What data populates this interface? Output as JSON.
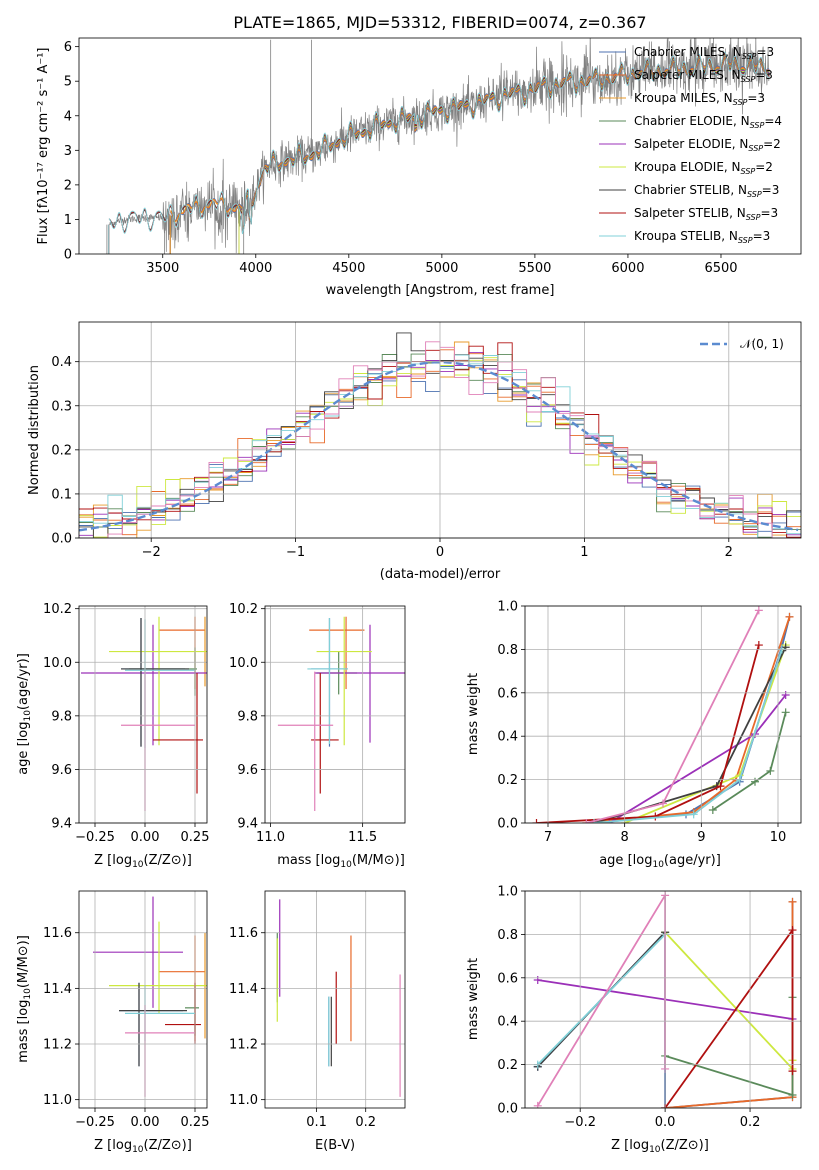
{
  "chart_data": [
    {
      "id": "spectrum",
      "type": "line",
      "title": "PLATE=1865, MJD=53312, FIBERID=0074, z=0.367",
      "xlabel": "wavelength [Angstrom, rest frame]",
      "ylabel": "Flux [f_λ 10^-17 erg cm^-2 s^-1 A^-1]",
      "xlim": [
        3050,
        6930
      ],
      "ylim": [
        0,
        6.25
      ],
      "xticks": [
        "3500",
        "4000",
        "4500",
        "5000",
        "5500",
        "6000",
        "6500"
      ],
      "yticks": [
        "0",
        "1",
        "2",
        "3",
        "4",
        "5",
        "6"
      ],
      "grid": false,
      "legend_position": "top-right",
      "continuum": {
        "x": [
          3210,
          3260,
          3300,
          3400,
          3500,
          3560,
          3620,
          3700,
          3780,
          3850,
          3920,
          3980,
          4050,
          4150,
          4250,
          4350,
          4450,
          4550,
          4650,
          4750,
          4850,
          4950,
          5050,
          5150,
          5250,
          5350,
          5450,
          5550,
          5650,
          5750,
          5850,
          5950,
          6050,
          6150,
          6250,
          6350,
          6450,
          6550,
          6650,
          6750
        ],
        "y": [
          0.85,
          0.95,
          1.0,
          1.05,
          1.05,
          1.15,
          1.25,
          1.4,
          1.45,
          1.4,
          1.3,
          1.6,
          2.5,
          2.7,
          2.8,
          3.0,
          3.3,
          3.5,
          3.7,
          3.85,
          3.95,
          4.1,
          4.2,
          4.3,
          4.45,
          4.6,
          4.7,
          4.85,
          4.95,
          5.0,
          5.05,
          5.15,
          5.25,
          5.3,
          5.35,
          5.4,
          5.45,
          5.5,
          5.45,
          5.4
        ]
      },
      "series": [
        {
          "name": "Chabrier MILES, N_SSP=3",
          "color": "#4c72b0"
        },
        {
          "name": "Salpeter MILES, N_SSP=3",
          "color": "#e86a2a"
        },
        {
          "name": "Kroupa MILES, N_SSP=3",
          "color": "#e89a2a"
        },
        {
          "name": "Chabrier ELODIE, N_SSP=4",
          "color": "#5a8a5a"
        },
        {
          "name": "Salpeter ELODIE, N_SSP=2",
          "color": "#9b30b8"
        },
        {
          "name": "Kroupa ELODIE, N_SSP=2",
          "color": "#cde840"
        },
        {
          "name": "Chabrier STELIB, N_SSP=3",
          "color": "#404040"
        },
        {
          "name": "Salpeter STELIB, N_SSP=3",
          "color": "#b01010"
        },
        {
          "name": "Kroupa STELIB, N_SSP=3",
          "color": "#80d0d8"
        }
      ],
      "legend_labels": [
        {
          "pre": "Chabrier MILES, N",
          "sub": "SSP",
          "post": "=3"
        },
        {
          "pre": "Salpeter MILES, N",
          "sub": "SSP",
          "post": "=3"
        },
        {
          "pre": "Kroupa MILES, N",
          "sub": "SSP",
          "post": "=3"
        },
        {
          "pre": "Chabrier ELODIE, N",
          "sub": "SSP",
          "post": "=4"
        },
        {
          "pre": "Salpeter ELODIE, N",
          "sub": "SSP",
          "post": "=2"
        },
        {
          "pre": "Kroupa ELODIE, N",
          "sub": "SSP",
          "post": "=2"
        },
        {
          "pre": "Chabrier STELIB, N",
          "sub": "SSP",
          "post": "=3"
        },
        {
          "pre": "Salpeter STELIB, N",
          "sub": "SSP",
          "post": "=3"
        },
        {
          "pre": "Kroupa STELIB, N",
          "sub": "SSP",
          "post": "=3"
        }
      ],
      "model_start": {
        "Chabrier MILES, N_SSP=3": 3540,
        "Salpeter MILES, N_SSP=3": 3540,
        "Kroupa MILES, N_SSP=3": 3540,
        "Chabrier ELODIE, N_SSP=4": 3910,
        "Salpeter ELODIE, N_SSP=2": 3910,
        "Kroupa ELODIE, N_SSP=2": 3910,
        "Chabrier STELIB, N_SSP=3": 3210,
        "Salpeter STELIB, N_SSP=3": 3210,
        "Kroupa STELIB, N_SSP=3": 3210
      },
      "data_color": "#808080"
    },
    {
      "id": "residuals",
      "type": "histogram",
      "xlabel": "(data-model)/error",
      "ylabel": "Normed distribution",
      "xlim": [
        -2.5,
        2.5
      ],
      "ylim": [
        0,
        0.49
      ],
      "xticks": [
        "−2",
        "−1",
        "0",
        "1",
        "2"
      ],
      "yticks": [
        "0.0",
        "0.1",
        "0.2",
        "0.3",
        "0.4"
      ],
      "grid": true,
      "bin_width": 0.1,
      "normal_curve": {
        "label": "𝒩(0, 1)",
        "color": "#5b8bd0"
      },
      "legend_position": "top-right"
    },
    {
      "id": "age-z",
      "type": "error_bars",
      "xlabel_pre": "Z [log",
      "xlabel_sub": "10",
      "xlabel_post": "(Z/Z⊙)]",
      "ylabel_pre": "age  [log",
      "ylabel_sub": "10",
      "ylabel_post": "(age/yr)]",
      "xlim": [
        -0.33,
        0.31
      ],
      "ylim": [
        9.4,
        10.21
      ],
      "xticks": [
        "−0.25",
        "0.00",
        "0.25"
      ],
      "yticks": [
        "9.4",
        "9.6",
        "9.8",
        "10.0",
        "10.2"
      ],
      "grid": true,
      "points": [
        {
          "series": 0,
          "x": -0.02,
          "xerr": [
            0.1,
            0.22
          ],
          "y": 9.975,
          "yerr": [
            0.29,
            0.19
          ]
        },
        {
          "series": 1,
          "x": 0.25,
          "xerr": [
            0.18,
            0.05
          ],
          "y": 10.12,
          "yerr": [
            0.22,
            0.05
          ]
        },
        {
          "series": 2,
          "x": 0.3,
          "xerr": [
            0.0,
            0.0
          ],
          "y": 10.12,
          "yerr": [
            0.21,
            0.05
          ]
        },
        {
          "series": 3,
          "x": 0.25,
          "xerr": [
            0.33,
            0.01
          ],
          "y": 9.975,
          "yerr": [
            0.1,
            0.08
          ]
        },
        {
          "series": 4,
          "x": 0.04,
          "xerr": [
            0.36,
            0.27
          ],
          "y": 9.96,
          "yerr": [
            0.27,
            0.18
          ]
        },
        {
          "series": 5,
          "x": 0.07,
          "xerr": [
            0.25,
            0.25
          ],
          "y": 10.04,
          "yerr": [
            0.35,
            0.13
          ]
        },
        {
          "series": 6,
          "x": -0.02,
          "xerr": [
            0.1,
            0.24
          ],
          "y": 9.975,
          "yerr": [
            0.29,
            0.19
          ]
        },
        {
          "series": 7,
          "x": 0.26,
          "xerr": [
            0.22,
            0.03
          ],
          "y": 9.71,
          "yerr": [
            0.2,
            0.25
          ]
        },
        {
          "series": 8,
          "x": 0.0,
          "xerr": [
            0.1,
            0.25
          ],
          "y": 9.97,
          "yerr": [
            0.29,
            0.19
          ]
        },
        {
          "series": 9,
          "x": 0.0,
          "xerr": [
            0.12,
            0.25
          ],
          "y": 9.765,
          "yerr": [
            0.32,
            0.2
          ]
        }
      ]
    },
    {
      "id": "age-mass",
      "type": "error_bars",
      "xlabel_pre": "mass [log",
      "xlabel_sub": "10",
      "xlabel_post": "(M/M⊙)]",
      "xlim": [
        10.97,
        11.73
      ],
      "ylim": [
        9.4,
        10.21
      ],
      "xticks": [
        "11.0",
        "11.5"
      ],
      "yticks": [
        "9.4",
        "9.6",
        "9.8",
        "10.0",
        "10.2"
      ],
      "grid": true,
      "points": [
        {
          "series": 0,
          "x": 11.32,
          "xerr": [
            0.1,
            0.1
          ],
          "y": 9.975,
          "yerr": [
            0.29,
            0.19
          ]
        },
        {
          "series": 1,
          "x": 11.41,
          "xerr": [
            0.2,
            0.1
          ],
          "y": 10.12,
          "yerr": [
            0.22,
            0.05
          ]
        },
        {
          "series": 3,
          "x": 11.37,
          "xerr": [
            0.12,
            0.1
          ],
          "y": 9.96,
          "yerr": [
            0.08,
            0.08
          ]
        },
        {
          "series": 4,
          "x": 11.54,
          "xerr": [
            0.3,
            0.2
          ],
          "y": 9.96,
          "yerr": [
            0.26,
            0.18
          ]
        },
        {
          "series": 5,
          "x": 11.4,
          "xerr": [
            0.15,
            0.15
          ],
          "y": 10.04,
          "yerr": [
            0.35,
            0.13
          ]
        },
        {
          "series": 7,
          "x": 11.27,
          "xerr": [
            0.05,
            0.1
          ],
          "y": 9.71,
          "yerr": [
            0.2,
            0.25
          ]
        },
        {
          "series": 8,
          "x": 11.32,
          "xerr": [
            0.12,
            0.1
          ],
          "y": 9.975,
          "yerr": [
            0.28,
            0.19
          ]
        },
        {
          "series": 9,
          "x": 11.24,
          "xerr": [
            0.2,
            0.1
          ],
          "y": 9.765,
          "yerr": [
            0.32,
            0.2
          ]
        }
      ]
    },
    {
      "id": "weight-age",
      "type": "line",
      "xlabel_pre": "age  [log",
      "xlabel_sub": "10",
      "xlabel_post": "(age/yr)]",
      "ylabel": "mass weight",
      "xlim": [
        6.7,
        10.3
      ],
      "ylim": [
        0,
        1.0
      ],
      "xticks": [
        "7",
        "8",
        "9",
        "10"
      ],
      "yticks": [
        "0.0",
        "0.2",
        "0.4",
        "0.6",
        "0.8",
        "1.0"
      ],
      "grid": true,
      "lines": [
        {
          "series": 0,
          "x": [
            7.6,
            8.8,
            9.5,
            10.05,
            10.15
          ],
          "y": [
            0.0,
            0.04,
            0.19,
            0.81,
            0.95
          ]
        },
        {
          "series": 1,
          "x": [
            7.5,
            8.9,
            9.45,
            10.15
          ],
          "y": [
            0.0,
            0.05,
            0.2,
            0.95
          ]
        },
        {
          "series": 3,
          "x": [
            9.15,
            9.7,
            9.9,
            10.1
          ],
          "y": [
            0.06,
            0.19,
            0.24,
            0.51
          ]
        },
        {
          "series": 4,
          "x": [
            7.8,
            9.7,
            10.1
          ],
          "y": [
            0.0,
            0.41,
            0.59
          ]
        },
        {
          "series": 5,
          "x": [
            8.0,
            9.5,
            10.1
          ],
          "y": [
            0.0,
            0.22,
            0.82
          ]
        },
        {
          "series": 6,
          "x": [
            7.6,
            9.2,
            10.1
          ],
          "y": [
            0.0,
            0.17,
            0.81
          ]
        },
        {
          "series": 7,
          "x": [
            6.85,
            8.4,
            9.25,
            9.75
          ],
          "y": [
            0.0,
            0.03,
            0.17,
            0.82
          ]
        },
        {
          "series": 8,
          "x": [
            7.6,
            8.9,
            9.5,
            10.05
          ],
          "y": [
            0.0,
            0.04,
            0.2,
            0.8
          ]
        },
        {
          "series": 9,
          "x": [
            7.5,
            8.5,
            9.75
          ],
          "y": [
            0.0,
            0.09,
            0.98
          ]
        }
      ]
    },
    {
      "id": "mass-z",
      "type": "error_bars",
      "xlabel_pre": "Z [log",
      "xlabel_sub": "10",
      "xlabel_post": "(Z/Z⊙)]",
      "ylabel_pre": "mass [log",
      "ylabel_sub": "10",
      "ylabel_post": "(M/M⊙)]",
      "xlim": [
        -0.33,
        0.31
      ],
      "ylim": [
        10.97,
        11.75
      ],
      "xticks": [
        "−0.25",
        "0.00",
        "0.25"
      ],
      "yticks": [
        "11.0",
        "11.2",
        "11.4",
        "11.6"
      ],
      "grid": true,
      "points": [
        {
          "series": 0,
          "x": -0.03,
          "xerr": [
            0.1,
            0.22
          ],
          "y": 11.32,
          "yerr": [
            0.2,
            0.1
          ]
        },
        {
          "series": 1,
          "x": 0.25,
          "xerr": [
            0.18,
            0.05
          ],
          "y": 11.46,
          "yerr": [
            0.25,
            0.13
          ]
        },
        {
          "series": 2,
          "x": 0.3,
          "xerr": [
            0.0,
            0.0
          ],
          "y": 11.42,
          "yerr": [
            0.2,
            0.18
          ]
        },
        {
          "series": 3,
          "x": 0.25,
          "xerr": [
            0.05,
            0.02
          ],
          "y": 11.33,
          "yerr": [
            0.1,
            0.08
          ]
        },
        {
          "series": 4,
          "x": 0.04,
          "xerr": [
            0.3,
            0.15
          ],
          "y": 11.53,
          "yerr": [
            0.2,
            0.2
          ]
        },
        {
          "series": 5,
          "x": 0.07,
          "xerr": [
            0.25,
            0.25
          ],
          "y": 11.41,
          "yerr": [
            0.1,
            0.23
          ]
        },
        {
          "series": 6,
          "x": -0.03,
          "xerr": [
            0.1,
            0.24
          ],
          "y": 11.32,
          "yerr": [
            0.2,
            0.1
          ]
        },
        {
          "series": 7,
          "x": 0.25,
          "xerr": [
            0.15,
            0.03
          ],
          "y": 11.27,
          "yerr": [
            0.07,
            0.15
          ]
        },
        {
          "series": 8,
          "x": 0.0,
          "xerr": [
            0.1,
            0.25
          ],
          "y": 11.31,
          "yerr": [
            0.1,
            0.1
          ]
        },
        {
          "series": 9,
          "x": 0.0,
          "xerr": [
            0.1,
            0.25
          ],
          "y": 11.24,
          "yerr": [
            0.23,
            0.1
          ]
        }
      ]
    },
    {
      "id": "mass-ebv",
      "type": "error_bars",
      "xlabel": "E(B-V)",
      "xlim": [
        -0.005,
        0.28
      ],
      "ylim": [
        10.97,
        11.75
      ],
      "xticks": [
        "0.1",
        "0.2"
      ],
      "yticks": [
        "11.0",
        "11.2",
        "11.4",
        "11.6"
      ],
      "grid": true,
      "points": [
        {
          "series": 0,
          "x": 0.125,
          "y": 11.25,
          "yerr": [
            0.13,
            0.12
          ]
        },
        {
          "series": 1,
          "x": 0.17,
          "y": 11.46,
          "yerr": [
            0.25,
            0.13
          ]
        },
        {
          "series": 3,
          "x": 0.02,
          "y": 11.5,
          "yerr": [
            0.15,
            0.1
          ]
        },
        {
          "series": 4,
          "x": 0.025,
          "y": 11.52,
          "yerr": [
            0.15,
            0.2
          ]
        },
        {
          "series": 5,
          "x": 0.02,
          "y": 11.45,
          "yerr": [
            0.17,
            0.13
          ]
        },
        {
          "series": 6,
          "x": 0.13,
          "y": 11.25,
          "yerr": [
            0.13,
            0.12
          ]
        },
        {
          "series": 7,
          "x": 0.14,
          "y": 11.33,
          "yerr": [
            0.13,
            0.13
          ]
        },
        {
          "series": 8,
          "x": 0.125,
          "y": 11.25,
          "yerr": [
            0.13,
            0.12
          ]
        },
        {
          "series": 9,
          "x": 0.27,
          "y": 11.23,
          "yerr": [
            0.22,
            0.22
          ]
        }
      ]
    },
    {
      "id": "weight-z",
      "type": "line",
      "xlabel_pre": "Z [log",
      "xlabel_sub": "10",
      "xlabel_post": "(Z/Z⊙)]",
      "ylabel": "mass weight",
      "xlim": [
        -0.33,
        0.32
      ],
      "ylim": [
        0,
        1.0
      ],
      "xticks": [
        "−0.2",
        "0.0",
        "0.2"
      ],
      "yticks": [
        "0.0",
        "0.2",
        "0.4",
        "0.6",
        "0.8",
        "1.0"
      ],
      "grid": true,
      "lines": [
        {
          "series": 0,
          "x": [
            -0.3,
            0.0,
            0.0,
            0.3,
            0.3
          ],
          "y": [
            0.19,
            0.81,
            0.0,
            0.05,
            0.95
          ]
        },
        {
          "series": 1,
          "x": [
            0.0,
            0.3,
            0.3
          ],
          "y": [
            0.0,
            0.05,
            0.95
          ]
        },
        {
          "series": 3,
          "x": [
            0.0,
            0.3,
            0.3
          ],
          "y": [
            0.24,
            0.06,
            0.51
          ]
        },
        {
          "series": 4,
          "x": [
            -0.3,
            0.3
          ],
          "y": [
            0.59,
            0.41
          ]
        },
        {
          "series": 5,
          "x": [
            0.0,
            0.3,
            0.3
          ],
          "y": [
            0.81,
            0.18,
            0.22
          ]
        },
        {
          "series": 6,
          "x": [
            -0.3,
            0.0
          ],
          "y": [
            0.19,
            0.81
          ]
        },
        {
          "series": 7,
          "x": [
            0.0,
            0.3,
            0.3
          ],
          "y": [
            0.0,
            0.82,
            0.17
          ]
        },
        {
          "series": 8,
          "x": [
            -0.3,
            0.0
          ],
          "y": [
            0.2,
            0.8
          ]
        },
        {
          "series": 9,
          "x": [
            -0.3,
            0.0,
            0.0
          ],
          "y": [
            0.01,
            0.98,
            0.18
          ]
        }
      ]
    }
  ],
  "palette": [
    "#4c72b0",
    "#e86a2a",
    "#e89a2a",
    "#5a8a5a",
    "#9b30b8",
    "#cde840",
    "#404040",
    "#b01010",
    "#80d0d8",
    "#e080b8"
  ]
}
